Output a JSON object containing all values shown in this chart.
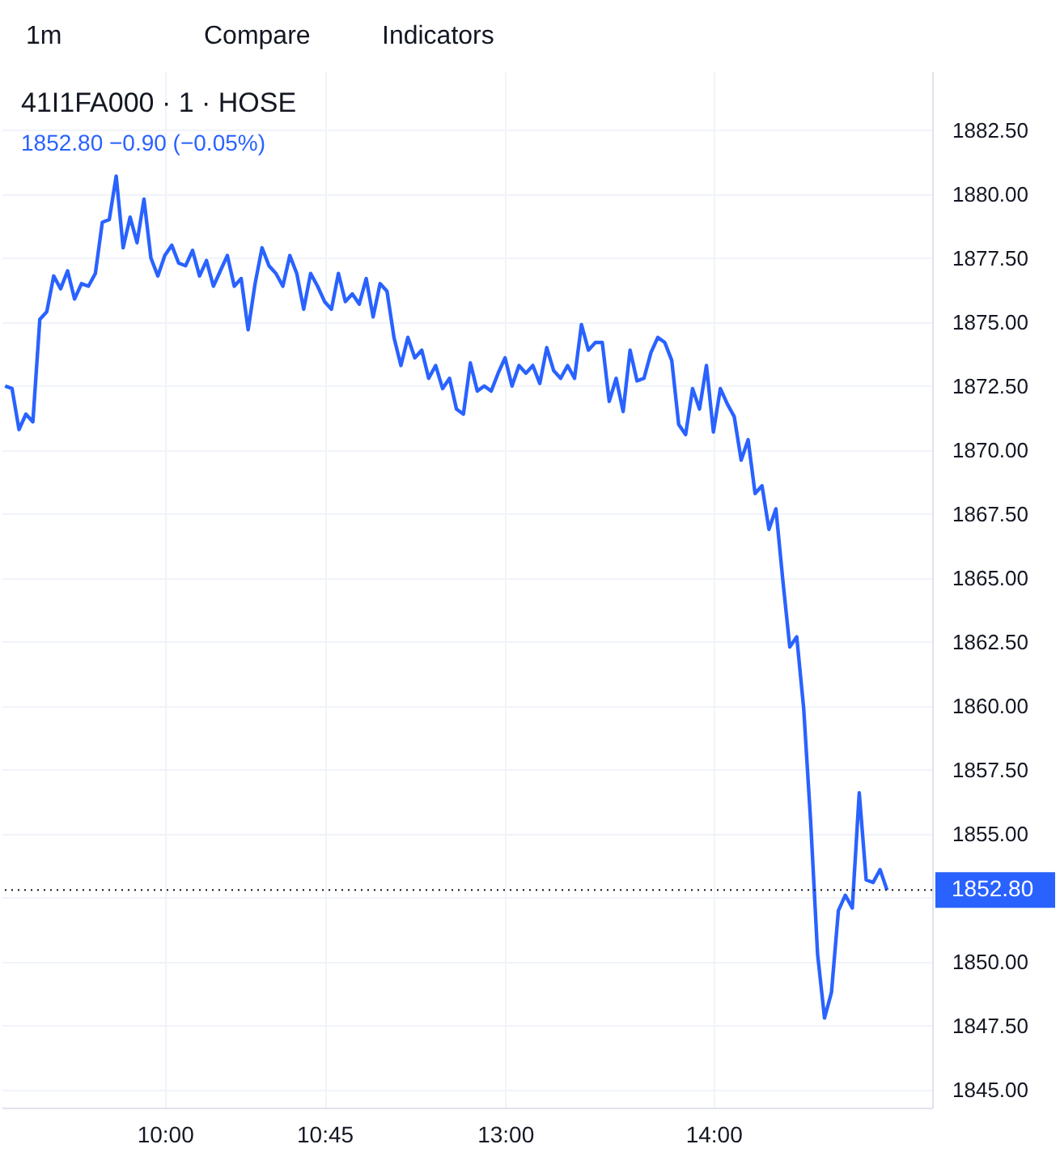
{
  "chart_data": {
    "type": "line",
    "title": "41I1FA000 · 1 · HOSE",
    "subtitle": "1852.80 −0.90 (−0.05%)",
    "annotations": [
      "1m",
      "Compare",
      "Indicators"
    ],
    "categories": [
      null,
      null,
      null,
      null,
      null,
      null,
      null,
      null,
      null,
      null,
      null,
      null,
      null,
      null,
      null,
      null,
      null,
      null,
      null,
      null,
      null,
      null,
      null,
      "10:00",
      null,
      null,
      null,
      null,
      null,
      null,
      null,
      null,
      null,
      null,
      null,
      null,
      null,
      null,
      null,
      null,
      null,
      null,
      null,
      null,
      null,
      null,
      "10:45",
      null,
      null,
      null,
      null,
      null,
      null,
      null,
      null,
      null,
      null,
      null,
      null,
      null,
      null,
      null,
      null,
      null,
      null,
      null,
      null,
      null,
      null,
      null,
      null,
      null,
      "13:00",
      null,
      null,
      null,
      null,
      null,
      null,
      null,
      null,
      null,
      null,
      null,
      null,
      null,
      null,
      null,
      null,
      null,
      null,
      null,
      null,
      null,
      null,
      null,
      null,
      null,
      null,
      null,
      null,
      null,
      "14:00",
      null,
      null,
      null,
      null,
      null,
      null,
      null,
      null,
      null,
      null,
      null,
      null,
      null,
      null,
      null,
      null,
      null,
      null,
      null,
      null,
      null,
      null,
      null,
      null,
      null,
      null,
      null,
      null,
      null,
      null,
      null
    ],
    "series": [
      {
        "color": "#2962ff",
        "values": [
          1872.5,
          1872.4,
          1870.8,
          1871.4,
          1871.1,
          1875.1,
          1875.4,
          1876.8,
          1876.3,
          1877.0,
          1875.9,
          1876.5,
          1876.4,
          1876.9,
          1878.9,
          1879.0,
          1880.7,
          1877.9,
          1879.1,
          1878.1,
          1879.8,
          1877.5,
          1876.8,
          1877.6,
          1878.0,
          1877.3,
          1877.2,
          1877.8,
          1876.8,
          1877.4,
          1876.4,
          1877.0,
          1877.6,
          1876.4,
          1876.7,
          1874.7,
          1876.5,
          1877.9,
          1877.2,
          1876.9,
          1876.4,
          1877.6,
          1876.9,
          1875.5,
          1876.9,
          1876.4,
          1875.8,
          1875.5,
          1876.9,
          1875.8,
          1876.1,
          1875.7,
          1876.7,
          1875.2,
          1876.5,
          1876.2,
          1874.4,
          1873.3,
          1874.4,
          1873.6,
          1873.9,
          1872.8,
          1873.3,
          1872.4,
          1872.8,
          1871.6,
          1871.4,
          1873.4,
          1872.3,
          1872.5,
          1872.3,
          1873.0,
          1873.6,
          1872.5,
          1873.3,
          1873.0,
          1873.3,
          1872.6,
          1874.0,
          1873.1,
          1872.8,
          1873.3,
          1872.8,
          1874.9,
          1873.9,
          1874.2,
          1874.2,
          1871.9,
          1872.8,
          1871.5,
          1873.9,
          1872.7,
          1872.8,
          1873.8,
          1874.4,
          1874.2,
          1873.5,
          1871.0,
          1870.6,
          1872.4,
          1871.6,
          1873.3,
          1870.7,
          1872.4,
          1871.8,
          1871.3,
          1869.6,
          1870.4,
          1868.3,
          1868.6,
          1866.9,
          1867.7,
          1864.9,
          1862.3,
          1862.7,
          1859.9,
          1855.5,
          1850.3,
          1847.8,
          1848.8,
          1852.0,
          1852.6,
          1852.1,
          1856.6,
          1853.2,
          1853.1,
          1853.6,
          1852.8,
          null,
          null,
          null,
          null,
          null,
          null
        ]
      }
    ],
    "ylim": [
      1844.3,
      1884.8
    ],
    "yticks": [
      {
        "value": 1845,
        "label": "1845.00"
      },
      {
        "value": 1847.5,
        "label": "1847.50"
      },
      {
        "value": 1850,
        "label": "1850.00"
      },
      {
        "value": 1852.5,
        "label": null
      },
      {
        "value": 1855,
        "label": "1855.00"
      },
      {
        "value": 1857.5,
        "label": "1857.50"
      },
      {
        "value": 1860,
        "label": "1860.00"
      },
      {
        "value": 1862.5,
        "label": "1862.50"
      },
      {
        "value": 1865,
        "label": "1865.00"
      },
      {
        "value": 1867.5,
        "label": "1867.50"
      },
      {
        "value": 1870,
        "label": "1870.00"
      },
      {
        "value": 1872.5,
        "label": "1872.50"
      },
      {
        "value": 1875,
        "label": "1875.00"
      },
      {
        "value": 1877.5,
        "label": "1877.50"
      },
      {
        "value": 1880,
        "label": "1880.00"
      },
      {
        "value": 1882.5,
        "label": "1882.50"
      }
    ],
    "grid": true,
    "line_style": "solid",
    "ref_lines": [
      {
        "axis": "y",
        "value": 1852.8,
        "label": "1852.80",
        "color": "#131722",
        "line_style": "dotted"
      }
    ]
  }
}
